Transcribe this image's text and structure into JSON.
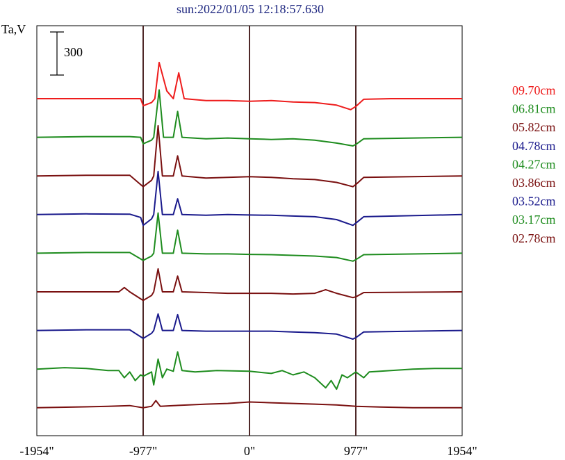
{
  "chart_data": {
    "type": "line",
    "title": "sun:2022/01/05 12:18:57.630",
    "ylabel": "Ta,V",
    "scale_bar_label": "300",
    "xlim": [
      -1954,
      1954
    ],
    "x_ticks": [
      {
        "value": -1954,
        "label": "-1954\""
      },
      {
        "value": -977,
        "label": "-977\""
      },
      {
        "value": 0,
        "label": "0\""
      },
      {
        "value": 977,
        "label": "977\""
      },
      {
        "value": 1954,
        "label": "1954\""
      }
    ],
    "vertical_lines": [
      -977,
      0,
      977
    ],
    "colors": {
      "text": "#1a237e",
      "frame": "#000000",
      "vline": "#3b1010"
    },
    "series": [
      {
        "name": "09.70cm",
        "color": "#ee1c1c",
        "baseline": 0,
        "spike_scale": 0.9,
        "points": [
          [
            -1954,
            0
          ],
          [
            -1100,
            0
          ],
          [
            -1000,
            0
          ],
          [
            -977,
            -55
          ],
          [
            -900,
            -30
          ],
          [
            -870,
            0
          ],
          [
            -830,
            280
          ],
          [
            -760,
            60
          ],
          [
            -700,
            0
          ],
          [
            -650,
            200
          ],
          [
            -600,
            0
          ],
          [
            -400,
            -15
          ],
          [
            -200,
            -15
          ],
          [
            0,
            -20
          ],
          [
            200,
            -15
          ],
          [
            400,
            -25
          ],
          [
            600,
            -30
          ],
          [
            800,
            -50
          ],
          [
            930,
            -85
          ],
          [
            977,
            -60
          ],
          [
            1050,
            -5
          ],
          [
            1300,
            0
          ],
          [
            1954,
            0
          ]
        ]
      },
      {
        "name": "06.81cm",
        "color": "#1e8c1e",
        "baseline": 0,
        "spike_scale": 1.0,
        "points": [
          [
            -1954,
            0
          ],
          [
            -1500,
            5
          ],
          [
            -1100,
            5
          ],
          [
            -1000,
            0
          ],
          [
            -977,
            -45
          ],
          [
            -900,
            -20
          ],
          [
            -880,
            0
          ],
          [
            -830,
            330
          ],
          [
            -790,
            0
          ],
          [
            -700,
            0
          ],
          [
            -660,
            180
          ],
          [
            -620,
            0
          ],
          [
            -400,
            -10
          ],
          [
            -200,
            -5
          ],
          [
            0,
            -10
          ],
          [
            200,
            -15
          ],
          [
            400,
            -10
          ],
          [
            600,
            -20
          ],
          [
            800,
            -40
          ],
          [
            950,
            -60
          ],
          [
            977,
            -50
          ],
          [
            1050,
            -10
          ],
          [
            1954,
            0
          ]
        ]
      },
      {
        "name": "05.82cm",
        "color": "#7a1010",
        "baseline": 0,
        "spike_scale": 1.0,
        "points": [
          [
            -1954,
            0
          ],
          [
            -1500,
            5
          ],
          [
            -1100,
            5
          ],
          [
            -977,
            -75
          ],
          [
            -900,
            -30
          ],
          [
            -880,
            0
          ],
          [
            -840,
            350
          ],
          [
            -800,
            0
          ],
          [
            -700,
            0
          ],
          [
            -660,
            140
          ],
          [
            -620,
            0
          ],
          [
            -400,
            -15
          ],
          [
            -200,
            -10
          ],
          [
            0,
            -5
          ],
          [
            200,
            -10
          ],
          [
            400,
            -20
          ],
          [
            600,
            -25
          ],
          [
            800,
            -45
          ],
          [
            950,
            -75
          ],
          [
            977,
            -60
          ],
          [
            1050,
            -10
          ],
          [
            1954,
            0
          ]
        ]
      },
      {
        "name": "04.78cm",
        "color": "#1a1a8c",
        "baseline": 0,
        "spike_scale": 1.0,
        "points": [
          [
            -1954,
            0
          ],
          [
            -1500,
            5
          ],
          [
            -1100,
            3
          ],
          [
            -1000,
            -20
          ],
          [
            -977,
            -75
          ],
          [
            -900,
            -30
          ],
          [
            -880,
            0
          ],
          [
            -840,
            300
          ],
          [
            -800,
            0
          ],
          [
            -700,
            0
          ],
          [
            -660,
            110
          ],
          [
            -620,
            0
          ],
          [
            -400,
            -5
          ],
          [
            -200,
            0
          ],
          [
            0,
            -3
          ],
          [
            200,
            -5
          ],
          [
            400,
            -10
          ],
          [
            600,
            -15
          ],
          [
            800,
            -35
          ],
          [
            950,
            -75
          ],
          [
            977,
            -60
          ],
          [
            1050,
            -15
          ],
          [
            1954,
            0
          ]
        ]
      },
      {
        "name": "04.27cm",
        "color": "#1e8c1e",
        "baseline": 0,
        "spike_scale": 1.0,
        "points": [
          [
            -1954,
            0
          ],
          [
            -1500,
            5
          ],
          [
            -1100,
            5
          ],
          [
            -977,
            -50
          ],
          [
            -900,
            -20
          ],
          [
            -880,
            0
          ],
          [
            -840,
            280
          ],
          [
            -800,
            0
          ],
          [
            -700,
            0
          ],
          [
            -660,
            160
          ],
          [
            -620,
            0
          ],
          [
            -400,
            -5
          ],
          [
            -200,
            -5
          ],
          [
            0,
            -8
          ],
          [
            200,
            -10
          ],
          [
            400,
            -15
          ],
          [
            600,
            -20
          ],
          [
            800,
            -30
          ],
          [
            950,
            -55
          ],
          [
            977,
            -45
          ],
          [
            1050,
            -10
          ],
          [
            1954,
            0
          ]
        ]
      },
      {
        "name": "03.86cm",
        "color": "#7a1010",
        "baseline": 0,
        "spike_scale": 1.0,
        "points": [
          [
            -1954,
            0
          ],
          [
            -1500,
            0
          ],
          [
            -1200,
            0
          ],
          [
            -1150,
            30
          ],
          [
            -1100,
            0
          ],
          [
            -977,
            -60
          ],
          [
            -900,
            -25
          ],
          [
            -880,
            0
          ],
          [
            -840,
            160
          ],
          [
            -800,
            0
          ],
          [
            -700,
            0
          ],
          [
            -660,
            110
          ],
          [
            -620,
            0
          ],
          [
            -400,
            -5
          ],
          [
            -200,
            -10
          ],
          [
            0,
            -10
          ],
          [
            200,
            -10
          ],
          [
            400,
            -15
          ],
          [
            600,
            -10
          ],
          [
            700,
            15
          ],
          [
            800,
            -10
          ],
          [
            950,
            -40
          ],
          [
            977,
            -35
          ],
          [
            1050,
            -5
          ],
          [
            1954,
            0
          ]
        ]
      },
      {
        "name": "03.52cm",
        "color": "#1a1a8c",
        "baseline": 0,
        "spike_scale": 1.0,
        "points": [
          [
            -1954,
            0
          ],
          [
            -1500,
            5
          ],
          [
            -1100,
            5
          ],
          [
            -977,
            -55
          ],
          [
            -900,
            -20
          ],
          [
            -880,
            0
          ],
          [
            -840,
            115
          ],
          [
            -800,
            0
          ],
          [
            -700,
            0
          ],
          [
            -660,
            110
          ],
          [
            -620,
            0
          ],
          [
            -400,
            -5
          ],
          [
            -200,
            -5
          ],
          [
            0,
            -5
          ],
          [
            200,
            -5
          ],
          [
            400,
            -10
          ],
          [
            600,
            -15
          ],
          [
            800,
            -25
          ],
          [
            950,
            -60
          ],
          [
            977,
            -50
          ],
          [
            1050,
            -10
          ],
          [
            1954,
            0
          ]
        ]
      },
      {
        "name": "03.17cm",
        "color": "#1e8c1e",
        "baseline": 0,
        "spike_scale": 1.0,
        "points": [
          [
            -1954,
            0
          ],
          [
            -1700,
            10
          ],
          [
            -1500,
            5
          ],
          [
            -1300,
            -10
          ],
          [
            -1200,
            -10
          ],
          [
            -1150,
            -60
          ],
          [
            -1100,
            -20
          ],
          [
            -1050,
            -80
          ],
          [
            -1000,
            -40
          ],
          [
            -977,
            -50
          ],
          [
            -900,
            -20
          ],
          [
            -880,
            -110
          ],
          [
            -840,
            70
          ],
          [
            -800,
            -60
          ],
          [
            -760,
            0
          ],
          [
            -700,
            -15
          ],
          [
            -660,
            120
          ],
          [
            -620,
            -10
          ],
          [
            -500,
            -20
          ],
          [
            -300,
            -10
          ],
          [
            0,
            -15
          ],
          [
            200,
            -30
          ],
          [
            300,
            -10
          ],
          [
            400,
            -40
          ],
          [
            500,
            -20
          ],
          [
            600,
            -60
          ],
          [
            700,
            -130
          ],
          [
            750,
            -80
          ],
          [
            800,
            -140
          ],
          [
            850,
            -40
          ],
          [
            900,
            -60
          ],
          [
            977,
            -20
          ],
          [
            1050,
            -60
          ],
          [
            1100,
            -20
          ],
          [
            1300,
            -10
          ],
          [
            1500,
            0
          ],
          [
            1700,
            5
          ],
          [
            1954,
            5
          ]
        ]
      },
      {
        "name": "02.78cm",
        "color": "#7a1010",
        "baseline": 0,
        "spike_scale": 1.0,
        "points": [
          [
            -1954,
            0
          ],
          [
            -1600,
            5
          ],
          [
            -1300,
            10
          ],
          [
            -1100,
            15
          ],
          [
            -977,
            0
          ],
          [
            -900,
            10
          ],
          [
            -860,
            50
          ],
          [
            -820,
            10
          ],
          [
            -700,
            15
          ],
          [
            -400,
            25
          ],
          [
            -200,
            30
          ],
          [
            0,
            40
          ],
          [
            200,
            35
          ],
          [
            400,
            30
          ],
          [
            600,
            25
          ],
          [
            800,
            20
          ],
          [
            977,
            10
          ],
          [
            1200,
            5
          ],
          [
            1500,
            0
          ],
          [
            1954,
            0
          ]
        ]
      }
    ]
  }
}
